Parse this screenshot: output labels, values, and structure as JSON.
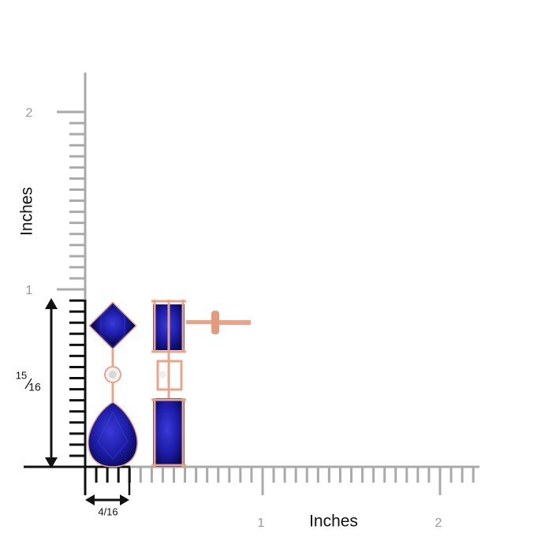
{
  "y_axis": {
    "label": "Inches",
    "ticks": [
      "1",
      "2"
    ]
  },
  "x_axis": {
    "label": "Inches",
    "ticks": [
      "1",
      "2"
    ]
  },
  "height_label": {
    "numerator": "15",
    "denominator": "16"
  },
  "width_label": "4/16"
}
